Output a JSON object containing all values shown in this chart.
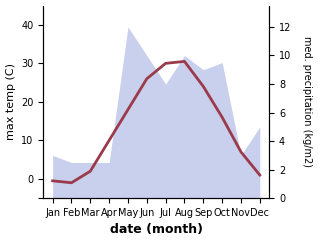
{
  "months": [
    "Jan",
    "Feb",
    "Mar",
    "Apr",
    "May",
    "Jun",
    "Jul",
    "Aug",
    "Sep",
    "Oct",
    "Nov",
    "Dec"
  ],
  "temp_max": [
    -0.5,
    -1.0,
    2.0,
    10.0,
    18.0,
    26.0,
    30.0,
    30.5,
    24.0,
    16.0,
    7.0,
    1.0
  ],
  "precip": [
    3.0,
    2.5,
    2.5,
    2.5,
    12.0,
    10.0,
    8.0,
    10.0,
    9.0,
    9.5,
    3.0,
    5.0
  ],
  "temp_color": "#9b3a4a",
  "precip_fill_color": "#c8d0ee",
  "precip_line_color": "#aab4d8",
  "ylim_temp": [
    -5,
    45
  ],
  "ylim_precip": [
    0,
    13.5
  ],
  "ylabel_left": "max temp (C)",
  "ylabel_right": "med. precipitation (kg/m2)",
  "xlabel": "date (month)",
  "background_color": "#ffffff",
  "tick_fontsize": 7,
  "label_fontsize": 8,
  "xlabel_fontsize": 9
}
